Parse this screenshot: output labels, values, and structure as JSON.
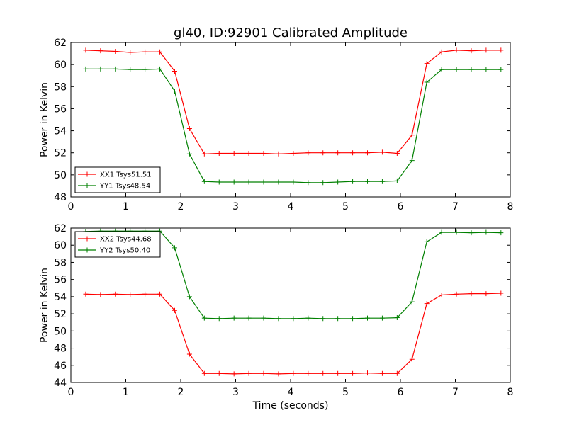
{
  "figure": {
    "title": "gl40, ID:92901 Calibrated Amplitude",
    "xlabel": "Time (seconds)"
  },
  "chart_data": [
    {
      "type": "line",
      "title": "gl40, ID:92901 Calibrated Amplitude",
      "xlabel": "",
      "ylabel": "Power in Kelvin",
      "xlim": [
        0,
        8
      ],
      "ylim": [
        48,
        62
      ],
      "xticks": [
        0,
        1,
        2,
        3,
        4,
        5,
        6,
        7,
        8
      ],
      "yticks": [
        48,
        50,
        52,
        54,
        56,
        58,
        60,
        62
      ],
      "grid": false,
      "legend": "bottom-left",
      "x": [
        0.27,
        0.54,
        0.81,
        1.08,
        1.35,
        1.62,
        1.89,
        2.16,
        2.43,
        2.7,
        2.97,
        3.24,
        3.51,
        3.78,
        4.05,
        4.32,
        4.59,
        4.86,
        5.13,
        5.4,
        5.67,
        5.94,
        6.21,
        6.48,
        6.75,
        7.02,
        7.29,
        7.56,
        7.83
      ],
      "series": [
        {
          "name": "XX1 Tsys51.51",
          "color": "#ff0000",
          "values": [
            61.3,
            61.25,
            61.2,
            61.1,
            61.15,
            61.15,
            59.4,
            54.2,
            51.9,
            51.95,
            51.95,
            51.95,
            51.95,
            51.9,
            51.95,
            52.0,
            52.0,
            52.0,
            52.0,
            52.0,
            52.05,
            51.95,
            53.6,
            60.1,
            61.15,
            61.3,
            61.25,
            61.3,
            61.3
          ]
        },
        {
          "name": "YY1 Tsys48.54",
          "color": "#008000",
          "values": [
            59.6,
            59.6,
            59.6,
            59.55,
            59.55,
            59.6,
            57.6,
            51.9,
            49.4,
            49.35,
            49.35,
            49.35,
            49.35,
            49.35,
            49.35,
            49.3,
            49.3,
            49.35,
            49.4,
            49.4,
            49.4,
            49.45,
            51.3,
            58.4,
            59.55,
            59.55,
            59.55,
            59.55,
            59.55
          ]
        }
      ]
    },
    {
      "type": "line",
      "title": "",
      "xlabel": "Time (seconds)",
      "ylabel": "Power in Kelvin",
      "xlim": [
        0,
        8
      ],
      "ylim": [
        44,
        62
      ],
      "xticks": [
        0,
        1,
        2,
        3,
        4,
        5,
        6,
        7,
        8
      ],
      "yticks": [
        44,
        46,
        48,
        50,
        52,
        54,
        56,
        58,
        60,
        62
      ],
      "grid": false,
      "legend": "top-left",
      "x": [
        0.27,
        0.54,
        0.81,
        1.08,
        1.35,
        1.62,
        1.89,
        2.16,
        2.43,
        2.7,
        2.97,
        3.24,
        3.51,
        3.78,
        4.05,
        4.32,
        4.59,
        4.86,
        5.13,
        5.4,
        5.67,
        5.94,
        6.21,
        6.48,
        6.75,
        7.02,
        7.29,
        7.56,
        7.83
      ],
      "series": [
        {
          "name": "XX2 Tsys44.68",
          "color": "#ff0000",
          "values": [
            54.3,
            54.25,
            54.3,
            54.25,
            54.3,
            54.3,
            52.4,
            47.3,
            45.05,
            45.05,
            45.0,
            45.05,
            45.05,
            45.0,
            45.05,
            45.05,
            45.05,
            45.05,
            45.05,
            45.1,
            45.05,
            45.05,
            46.7,
            53.2,
            54.2,
            54.3,
            54.35,
            54.35,
            54.4
          ]
        },
        {
          "name": "YY2 Tsys50.40",
          "color": "#008000",
          "values": [
            61.6,
            61.65,
            61.65,
            61.65,
            61.65,
            61.65,
            59.7,
            54.0,
            51.5,
            51.45,
            51.5,
            51.5,
            51.5,
            51.45,
            51.45,
            51.5,
            51.45,
            51.45,
            51.45,
            51.5,
            51.5,
            51.55,
            53.4,
            60.4,
            61.5,
            61.5,
            61.45,
            61.5,
            61.45
          ]
        }
      ]
    }
  ]
}
